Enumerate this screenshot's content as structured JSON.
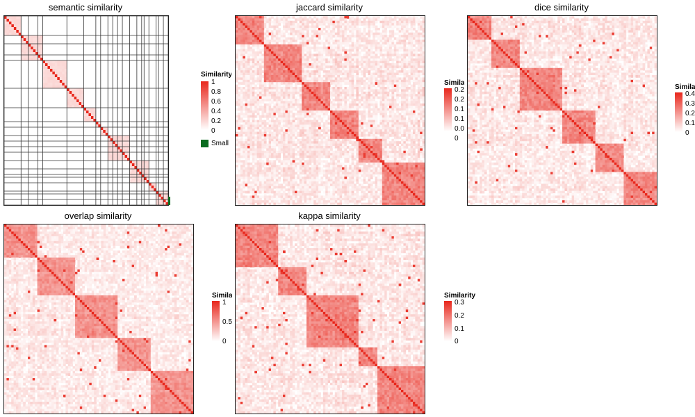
{
  "chart_data": [
    {
      "type": "heatmap",
      "title": "semantic similarity",
      "legend_title": "Similarity",
      "legend_ticks": [
        "1",
        "0.8",
        "0.6",
        "0.4",
        "0.2",
        "0"
      ],
      "legend_extra": "Small",
      "colors": {
        "high": "#e8271c",
        "low": "#ffffff",
        "extra": "#0a6b1f"
      },
      "range": [
        0,
        1
      ]
    },
    {
      "type": "heatmap",
      "title": "jaccard similarity",
      "legend_title": "Similarity",
      "legend_ticks": [
        "0.2",
        "0.2",
        "0.1",
        "0.1",
        "0.0",
        "0"
      ],
      "colors": {
        "high": "#e8271c",
        "low": "#ffffff"
      },
      "range": [
        0,
        0.25
      ]
    },
    {
      "type": "heatmap",
      "title": "dice similarity",
      "legend_title": "Similarity",
      "legend_ticks": [
        "0.4",
        "0.3",
        "0.2",
        "0.1",
        "0"
      ],
      "colors": {
        "high": "#e8271c",
        "low": "#ffffff"
      },
      "range": [
        0,
        0.4
      ]
    },
    {
      "type": "heatmap",
      "title": "overlap similarity",
      "legend_title": "Similarity",
      "legend_ticks": [
        "1",
        "0.5",
        "0"
      ],
      "colors": {
        "high": "#e8271c",
        "low": "#ffffff"
      },
      "range": [
        0,
        1
      ]
    },
    {
      "type": "heatmap",
      "title": "kappa similarity",
      "legend_title": "Similarity",
      "legend_ticks": [
        "0.3",
        "0.2",
        "0.1",
        "0"
      ],
      "colors": {
        "high": "#e8271c",
        "low": "#ffffff"
      },
      "range": [
        0,
        0.3
      ]
    }
  ]
}
